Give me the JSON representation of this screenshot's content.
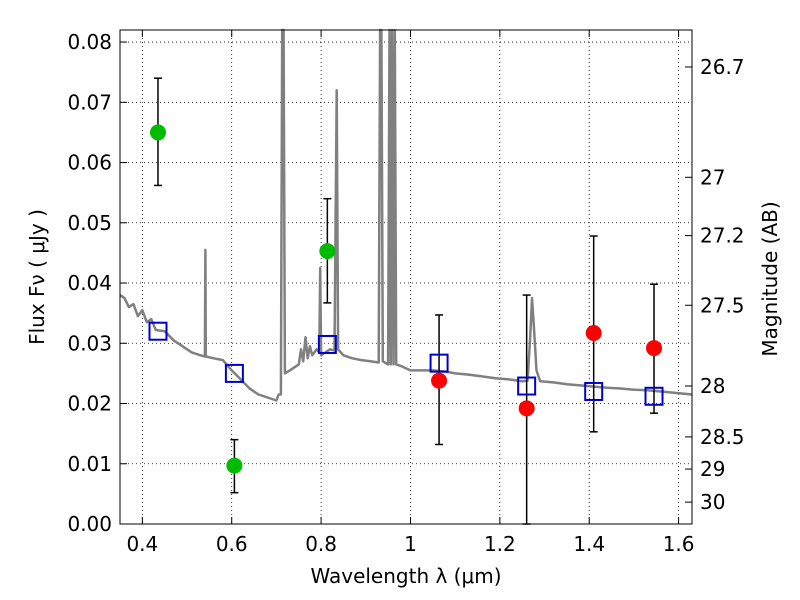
{
  "chart_data": {
    "type": "scatter",
    "xlabel": "Wavelength  λ (μm)",
    "ylabel": "Flux  Fν  ( μJy )",
    "y2label": "Magnitude (AB)",
    "xlim": [
      0.35,
      1.63
    ],
    "ylim": [
      0.0,
      0.082
    ],
    "xticks": [
      {
        "v": 0.4,
        "label": "0.4"
      },
      {
        "v": 0.6,
        "label": "0.6"
      },
      {
        "v": 0.8,
        "label": "0.8"
      },
      {
        "v": 1.0,
        "label": "1"
      },
      {
        "v": 1.2,
        "label": "1.2"
      },
      {
        "v": 1.4,
        "label": "1.4"
      },
      {
        "v": 1.6,
        "label": "1.6"
      }
    ],
    "yticks": [
      {
        "v": 0.0,
        "label": "0.00"
      },
      {
        "v": 0.01,
        "label": "0.01"
      },
      {
        "v": 0.02,
        "label": "0.02"
      },
      {
        "v": 0.03,
        "label": "0.03"
      },
      {
        "v": 0.04,
        "label": "0.04"
      },
      {
        "v": 0.05,
        "label": "0.05"
      },
      {
        "v": 0.06,
        "label": "0.06"
      },
      {
        "v": 0.07,
        "label": "0.07"
      },
      {
        "v": 0.08,
        "label": "0.08"
      }
    ],
    "y2ticks": [
      {
        "v": 26.7,
        "label": "26.7"
      },
      {
        "v": 27.0,
        "label": "27"
      },
      {
        "v": 27.2,
        "label": "27.2"
      },
      {
        "v": 27.5,
        "label": "27.5"
      },
      {
        "v": 28.0,
        "label": "28"
      },
      {
        "v": 28.5,
        "label": "28.5"
      },
      {
        "v": 29.0,
        "label": "29"
      },
      {
        "v": 30.0,
        "label": "30"
      }
    ],
    "grid": true,
    "colors": {
      "green": "#00bb00",
      "red": "#ff0000",
      "blue": "#0000cc",
      "model": "#808080",
      "errorbar": "#000000"
    },
    "series": [
      {
        "marker": "circle-green",
        "points": [
          {
            "x": 0.435,
            "y": 0.065,
            "lo": 0.0562,
            "hi": 0.074
          },
          {
            "x": 0.606,
            "y": 0.0097,
            "lo": 0.0052,
            "hi": 0.014
          },
          {
            "x": 0.814,
            "y": 0.0453,
            "lo": 0.0367,
            "hi": 0.054
          }
        ]
      },
      {
        "marker": "circle-red",
        "points": [
          {
            "x": 1.064,
            "y": 0.0238,
            "lo": 0.0132,
            "hi": 0.0347
          },
          {
            "x": 1.26,
            "y": 0.0192,
            "lo": 0.0,
            "hi": 0.038
          },
          {
            "x": 1.41,
            "y": 0.0317,
            "lo": 0.0153,
            "hi": 0.0478
          },
          {
            "x": 1.545,
            "y": 0.0292,
            "lo": 0.0184,
            "hi": 0.0398
          }
        ]
      },
      {
        "marker": "open-square-blue",
        "points": [
          {
            "x": 0.435,
            "y": 0.032
          },
          {
            "x": 0.606,
            "y": 0.025
          },
          {
            "x": 0.814,
            "y": 0.0298
          },
          {
            "x": 1.064,
            "y": 0.0267
          },
          {
            "x": 1.26,
            "y": 0.0229
          },
          {
            "x": 1.41,
            "y": 0.022
          },
          {
            "x": 1.545,
            "y": 0.0212
          }
        ]
      },
      {
        "marker": "line-gray",
        "points": [
          [
            0.35,
            0.038
          ],
          [
            0.36,
            0.0375
          ],
          [
            0.37,
            0.036
          ],
          [
            0.38,
            0.0365
          ],
          [
            0.39,
            0.0345
          ],
          [
            0.4,
            0.0355
          ],
          [
            0.41,
            0.0335
          ],
          [
            0.42,
            0.034
          ],
          [
            0.43,
            0.0322
          ],
          [
            0.45,
            0.032
          ],
          [
            0.47,
            0.0305
          ],
          [
            0.49,
            0.0295
          ],
          [
            0.51,
            0.0285
          ],
          [
            0.53,
            0.028
          ],
          [
            0.54,
            0.0278
          ],
          [
            0.541,
            0.0455
          ],
          [
            0.542,
            0.0278
          ],
          [
            0.56,
            0.0275
          ],
          [
            0.58,
            0.0272
          ],
          [
            0.6,
            0.0255
          ],
          [
            0.62,
            0.024
          ],
          [
            0.64,
            0.0225
          ],
          [
            0.66,
            0.0215
          ],
          [
            0.68,
            0.021
          ],
          [
            0.7,
            0.0205
          ],
          [
            0.705,
            0.0215
          ],
          [
            0.71,
            0.0215
          ],
          [
            0.713,
            0.082
          ],
          [
            0.716,
            0.082
          ],
          [
            0.719,
            0.025
          ],
          [
            0.73,
            0.0255
          ],
          [
            0.74,
            0.026
          ],
          [
            0.75,
            0.0265
          ],
          [
            0.755,
            0.029
          ],
          [
            0.76,
            0.027
          ],
          [
            0.765,
            0.031
          ],
          [
            0.77,
            0.0275
          ],
          [
            0.775,
            0.0295
          ],
          [
            0.78,
            0.028
          ],
          [
            0.79,
            0.029
          ],
          [
            0.796,
            0.0285
          ],
          [
            0.798,
            0.0425
          ],
          [
            0.8,
            0.028
          ],
          [
            0.81,
            0.0285
          ],
          [
            0.82,
            0.029
          ],
          [
            0.83,
            0.0288
          ],
          [
            0.835,
            0.072
          ],
          [
            0.838,
            0.029
          ],
          [
            0.85,
            0.028
          ],
          [
            0.87,
            0.0275
          ],
          [
            0.89,
            0.0272
          ],
          [
            0.91,
            0.027
          ],
          [
            0.929,
            0.0268
          ],
          [
            0.932,
            0.082
          ],
          [
            0.935,
            0.082
          ],
          [
            0.938,
            0.027
          ],
          [
            0.95,
            0.0265
          ],
          [
            0.953,
            0.082
          ],
          [
            0.956,
            0.0265
          ],
          [
            0.959,
            0.082
          ],
          [
            0.962,
            0.0265
          ],
          [
            0.965,
            0.082
          ],
          [
            0.968,
            0.0265
          ],
          [
            0.98,
            0.0262
          ],
          [
            1.0,
            0.0255
          ],
          [
            1.02,
            0.0255
          ],
          [
            1.05,
            0.0255
          ],
          [
            1.08,
            0.0253
          ],
          [
            1.1,
            0.025
          ],
          [
            1.13,
            0.0248
          ],
          [
            1.16,
            0.0245
          ],
          [
            1.19,
            0.0242
          ],
          [
            1.22,
            0.024
          ],
          [
            1.25,
            0.0237
          ],
          [
            1.262,
            0.0238
          ],
          [
            1.268,
            0.031
          ],
          [
            1.272,
            0.0375
          ],
          [
            1.276,
            0.033
          ],
          [
            1.282,
            0.0255
          ],
          [
            1.29,
            0.0237
          ],
          [
            1.32,
            0.0235
          ],
          [
            1.35,
            0.0232
          ],
          [
            1.38,
            0.023
          ],
          [
            1.41,
            0.0228
          ],
          [
            1.44,
            0.0226
          ],
          [
            1.47,
            0.0225
          ],
          [
            1.5,
            0.0223
          ],
          [
            1.53,
            0.0222
          ],
          [
            1.56,
            0.022
          ],
          [
            1.59,
            0.0218
          ],
          [
            1.63,
            0.0215
          ]
        ]
      }
    ]
  }
}
